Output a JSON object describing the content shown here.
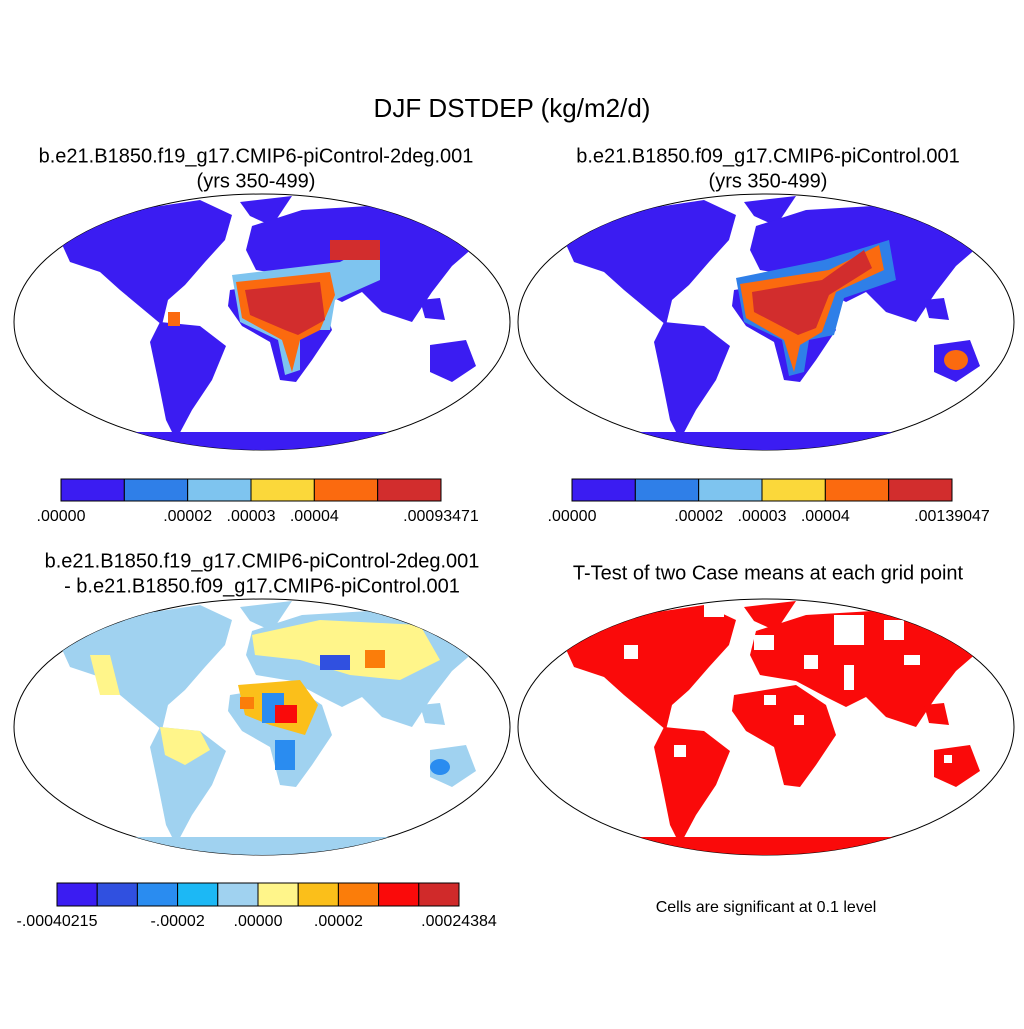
{
  "title": "DJF DSTDEP (kg/m2/d)",
  "panels": [
    {
      "title": [
        "b.e21.B1850.f19_g17.CMIP6-piControl-2deg.001",
        "(yrs 350-499)"
      ],
      "colorbar": {
        "colors": [
          "#3b1cf2",
          "#2f7fe8",
          "#7ec4ef",
          "#fbd83a",
          "#fb6a0f",
          "#d22d2d"
        ],
        "labels": [
          ".00000",
          null,
          ".00002",
          ".00003",
          ".00004",
          null,
          ".00093471"
        ]
      }
    },
    {
      "title": [
        "b.e21.B1850.f09_g17.CMIP6-piControl.001",
        "(yrs 350-499)"
      ],
      "colorbar": {
        "colors": [
          "#3b1cf2",
          "#2f7fe8",
          "#7ec4ef",
          "#fbd83a",
          "#fb6a0f",
          "#d22d2d"
        ],
        "labels": [
          ".00000",
          null,
          ".00002",
          ".00003",
          ".00004",
          null,
          ".00139047"
        ]
      }
    },
    {
      "title": [
        "b.e21.B1850.f19_g17.CMIP6-piControl-2deg.001",
        "- b.e21.B1850.f09_g17.CMIP6-piControl.001"
      ],
      "colorbar": {
        "colors": [
          "#3b1cf2",
          "#3050e0",
          "#2a8cf0",
          "#1cb8f5",
          "#a0d2f0",
          "#fff58a",
          "#fbbf1a",
          "#fb7d0a",
          "#fa0a0a",
          "#d02a2a"
        ],
        "labels": [
          "-.00040215",
          null,
          null,
          "-.00002",
          null,
          ".00000",
          null,
          ".00002",
          null,
          null,
          ".00024384"
        ]
      }
    },
    {
      "title": [
        "T-Test of two Case means at each grid point"
      ],
      "note": "Cells are significant at 0.1 level"
    }
  ]
}
